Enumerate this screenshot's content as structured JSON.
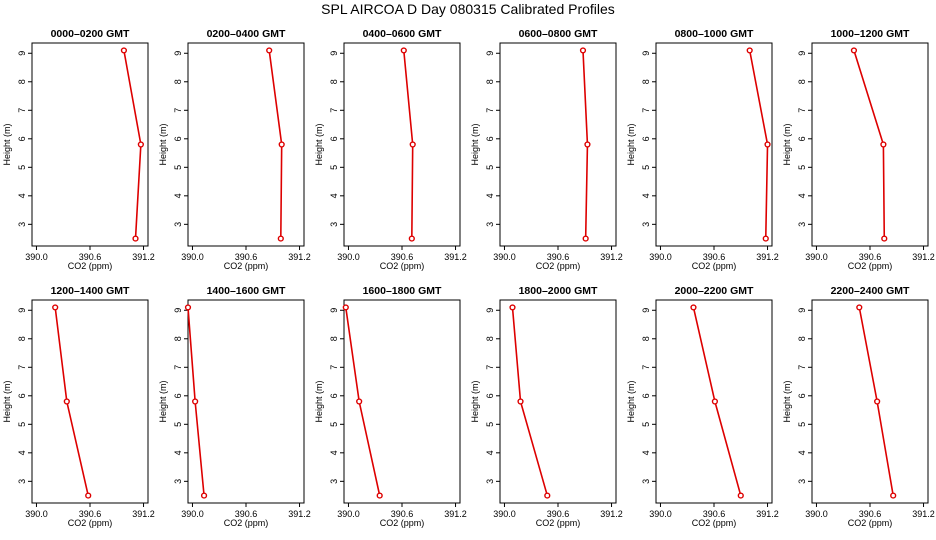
{
  "title": "SPL AIRCOA D  Day 080315  Calibrated Profiles",
  "colors": {
    "series": "#dd0000",
    "axis": "#000000",
    "background": "#ffffff"
  },
  "chart_data": [
    {
      "type": "line",
      "title": "0000–0200 GMT",
      "xlabel": "CO2 (ppm)",
      "ylabel": "Height (m)",
      "xlim": [
        390.0,
        391.2
      ],
      "ylim": [
        2.5,
        9.1
      ],
      "xticks": [
        "390.0",
        "390.6",
        "391.2"
      ],
      "yticks": [
        "3",
        "4",
        "5",
        "6",
        "7",
        "8",
        "9"
      ],
      "x": [
        390.98,
        391.17,
        391.11
      ],
      "y": [
        9.1,
        5.8,
        2.5
      ]
    },
    {
      "type": "line",
      "title": "0200–0400 GMT",
      "xlabel": "CO2 (ppm)",
      "ylabel": "Height (m)",
      "xlim": [
        390.0,
        391.2
      ],
      "ylim": [
        2.5,
        9.1
      ],
      "xticks": [
        "390.0",
        "390.6",
        "391.2"
      ],
      "yticks": [
        "3",
        "4",
        "5",
        "6",
        "7",
        "8",
        "9"
      ],
      "x": [
        390.86,
        391.0,
        390.99
      ],
      "y": [
        9.1,
        5.8,
        2.5
      ]
    },
    {
      "type": "line",
      "title": "0400–0600 GMT",
      "xlabel": "CO2 (ppm)",
      "ylabel": "Height (m)",
      "xlim": [
        390.0,
        391.2
      ],
      "ylim": [
        2.5,
        9.1
      ],
      "xticks": [
        "390.0",
        "390.6",
        "391.2"
      ],
      "yticks": [
        "3",
        "4",
        "5",
        "6",
        "7",
        "8",
        "9"
      ],
      "x": [
        390.62,
        390.72,
        390.71
      ],
      "y": [
        9.1,
        5.8,
        2.5
      ]
    },
    {
      "type": "line",
      "title": "0600–0800 GMT",
      "xlabel": "CO2 (ppm)",
      "ylabel": "Height (m)",
      "xlim": [
        390.0,
        391.2
      ],
      "ylim": [
        2.5,
        9.1
      ],
      "xticks": [
        "390.0",
        "390.6",
        "391.2"
      ],
      "yticks": [
        "3",
        "4",
        "5",
        "6",
        "7",
        "8",
        "9"
      ],
      "x": [
        390.88,
        390.93,
        390.91
      ],
      "y": [
        9.1,
        5.8,
        2.5
      ]
    },
    {
      "type": "line",
      "title": "0800–1000 GMT",
      "xlabel": "CO2 (ppm)",
      "ylabel": "Height (m)",
      "xlim": [
        390.0,
        391.2
      ],
      "ylim": [
        2.5,
        9.1
      ],
      "xticks": [
        "390.0",
        "390.6",
        "391.2"
      ],
      "yticks": [
        "3",
        "4",
        "5",
        "6",
        "7",
        "8",
        "9"
      ],
      "x": [
        391.0,
        391.2,
        391.18
      ],
      "y": [
        9.1,
        5.8,
        2.5
      ]
    },
    {
      "type": "line",
      "title": "1000–1200 GMT",
      "xlabel": "CO2 (ppm)",
      "ylabel": "Height (m)",
      "xlim": [
        390.0,
        391.2
      ],
      "ylim": [
        2.5,
        9.1
      ],
      "xticks": [
        "390.0",
        "390.6",
        "391.2"
      ],
      "yticks": [
        "3",
        "4",
        "5",
        "6",
        "7",
        "8",
        "9"
      ],
      "x": [
        390.42,
        390.75,
        390.76
      ],
      "y": [
        9.1,
        5.8,
        2.5
      ]
    },
    {
      "type": "line",
      "title": "1200–1400 GMT",
      "xlabel": "CO2 (ppm)",
      "ylabel": "Height (m)",
      "xlim": [
        390.0,
        391.2
      ],
      "ylim": [
        2.5,
        9.1
      ],
      "xticks": [
        "390.0",
        "390.6",
        "391.2"
      ],
      "yticks": [
        "3",
        "4",
        "5",
        "6",
        "7",
        "8",
        "9"
      ],
      "x": [
        390.21,
        390.34,
        390.58
      ],
      "y": [
        9.1,
        5.8,
        2.5
      ]
    },
    {
      "type": "line",
      "title": "1400–1600 GMT",
      "xlabel": "CO2 (ppm)",
      "ylabel": "Height (m)",
      "xlim": [
        390.0,
        391.2
      ],
      "ylim": [
        2.5,
        9.1
      ],
      "xticks": [
        "390.0",
        "390.6",
        "391.2"
      ],
      "yticks": [
        "3",
        "4",
        "5",
        "6",
        "7",
        "8",
        "9"
      ],
      "x": [
        389.95,
        390.03,
        390.13
      ],
      "y": [
        9.1,
        5.8,
        2.5
      ]
    },
    {
      "type": "line",
      "title": "1600–1800 GMT",
      "xlabel": "CO2 (ppm)",
      "ylabel": "Height (m)",
      "xlim": [
        390.0,
        391.2
      ],
      "ylim": [
        2.5,
        9.1
      ],
      "xticks": [
        "390.0",
        "390.6",
        "391.2"
      ],
      "yticks": [
        "3",
        "4",
        "5",
        "6",
        "7",
        "8",
        "9"
      ],
      "x": [
        389.97,
        390.12,
        390.35
      ],
      "y": [
        9.1,
        5.8,
        2.5
      ]
    },
    {
      "type": "line",
      "title": "1800–2000 GMT",
      "xlabel": "CO2 (ppm)",
      "ylabel": "Height (m)",
      "xlim": [
        390.0,
        391.2
      ],
      "ylim": [
        2.5,
        9.1
      ],
      "xticks": [
        "390.0",
        "390.6",
        "391.2"
      ],
      "yticks": [
        "3",
        "4",
        "5",
        "6",
        "7",
        "8",
        "9"
      ],
      "x": [
        390.09,
        390.18,
        390.48
      ],
      "y": [
        9.1,
        5.8,
        2.5
      ]
    },
    {
      "type": "line",
      "title": "2000–2200 GMT",
      "xlabel": "CO2 (ppm)",
      "ylabel": "Height (m)",
      "xlim": [
        390.0,
        391.2
      ],
      "ylim": [
        2.5,
        9.1
      ],
      "xticks": [
        "390.0",
        "390.6",
        "391.2"
      ],
      "yticks": [
        "3",
        "4",
        "5",
        "6",
        "7",
        "8",
        "9"
      ],
      "x": [
        390.37,
        390.61,
        390.9
      ],
      "y": [
        9.1,
        5.8,
        2.5
      ]
    },
    {
      "type": "line",
      "title": "2200–2400 GMT",
      "xlabel": "CO2 (ppm)",
      "ylabel": "Height (m)",
      "xlim": [
        390.0,
        391.2
      ],
      "ylim": [
        2.5,
        9.1
      ],
      "xticks": [
        "390.0",
        "390.6",
        "391.2"
      ],
      "yticks": [
        "3",
        "4",
        "5",
        "6",
        "7",
        "8",
        "9"
      ],
      "x": [
        390.48,
        390.68,
        390.86
      ],
      "y": [
        9.1,
        5.8,
        2.5
      ]
    }
  ]
}
